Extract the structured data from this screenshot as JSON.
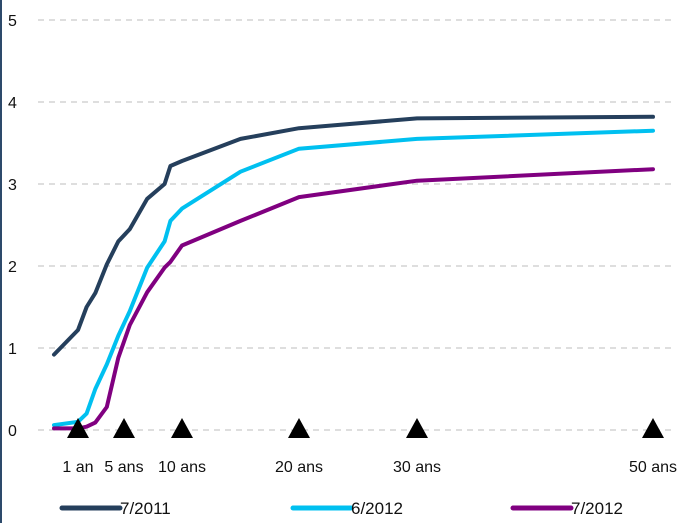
{
  "chart_data": {
    "type": "line",
    "title": "",
    "xlabel": "",
    "ylabel": "",
    "ylim": [
      0,
      5
    ],
    "y_ticks": [
      "0",
      "1",
      "2",
      "3",
      "4",
      "5"
    ],
    "grid": "horizontal dashed",
    "legend_position": "bottom",
    "x_range_years": [
      0.25,
      50
    ],
    "x_ticks": [
      {
        "label": "1 an",
        "years": 1
      },
      {
        "label": "5 ans",
        "years": 5
      },
      {
        "label": "10 ans",
        "years": 10
      },
      {
        "label": "20 ans",
        "years": 20
      },
      {
        "label": "30 ans",
        "years": 30
      },
      {
        "label": "50 ans",
        "years": 50
      }
    ],
    "markers": "triangle at each labelled maturity",
    "series": [
      {
        "name": "7/2011",
        "color": "#253f5c",
        "points": [
          [
            0.25,
            0.92
          ],
          [
            1,
            1.22
          ],
          [
            1.75,
            1.5
          ],
          [
            2.5,
            1.67
          ],
          [
            3.5,
            2.02
          ],
          [
            4.5,
            2.3
          ],
          [
            5.5,
            2.45
          ],
          [
            7,
            2.82
          ],
          [
            8.5,
            3.0
          ],
          [
            9,
            3.22
          ],
          [
            10,
            3.28
          ],
          [
            15,
            3.55
          ],
          [
            20,
            3.68
          ],
          [
            30,
            3.8
          ],
          [
            50,
            3.82
          ]
        ]
      },
      {
        "name": "6/2012",
        "color": "#00c0f0",
        "points": [
          [
            0.25,
            0.06
          ],
          [
            1,
            0.1
          ],
          [
            1.75,
            0.2
          ],
          [
            2.5,
            0.5
          ],
          [
            3.5,
            0.8
          ],
          [
            4.5,
            1.15
          ],
          [
            5.5,
            1.45
          ],
          [
            7,
            1.98
          ],
          [
            8.5,
            2.3
          ],
          [
            9,
            2.55
          ],
          [
            10,
            2.7
          ],
          [
            15,
            3.15
          ],
          [
            20,
            3.43
          ],
          [
            30,
            3.55
          ],
          [
            50,
            3.65
          ]
        ]
      },
      {
        "name": "7/2012",
        "color": "#800080",
        "points": [
          [
            0.25,
            0.02
          ],
          [
            1,
            0.02
          ],
          [
            1.75,
            0.04
          ],
          [
            2.5,
            0.09
          ],
          [
            3.5,
            0.28
          ],
          [
            4.5,
            0.88
          ],
          [
            5.5,
            1.28
          ],
          [
            7,
            1.68
          ],
          [
            8.5,
            1.98
          ],
          [
            9,
            2.05
          ],
          [
            10,
            2.25
          ],
          [
            15,
            2.55
          ],
          [
            20,
            2.84
          ],
          [
            30,
            3.04
          ],
          [
            50,
            3.18
          ]
        ]
      }
    ]
  }
}
